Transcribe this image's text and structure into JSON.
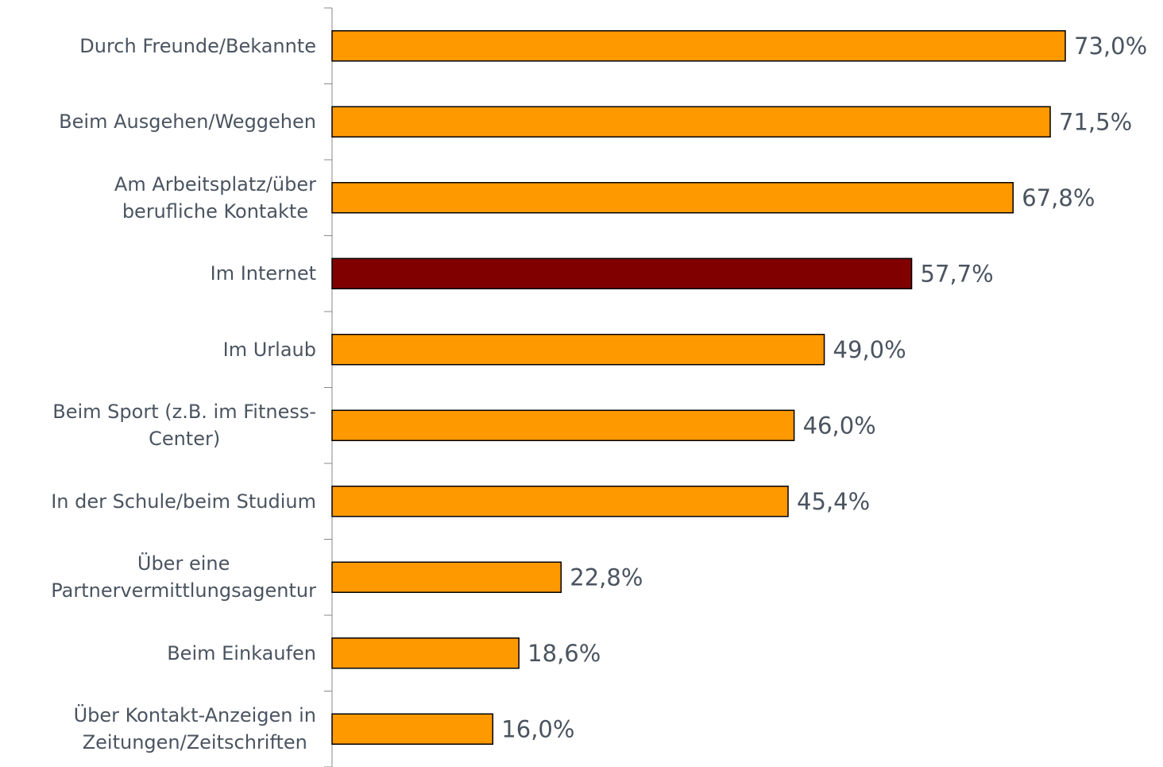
{
  "chart_data": {
    "type": "bar",
    "orientation": "horizontal",
    "categories": [
      "Durch Freunde/Bekannte",
      "Beim Ausgehen/Weggehen",
      "Am Arbeitsplatz/über\nberufliche Kontakte",
      "Im Internet",
      "Im Urlaub",
      "Beim Sport (z.B. im Fitness-\nCenter)",
      "In der Schule/beim Studium",
      "Über eine\nPartnervermittlungsagentur",
      "Beim Einkaufen",
      "Über Kontakt-Anzeigen in\nZeitungen/Zeitschriften"
    ],
    "values": [
      73.0,
      71.5,
      67.8,
      57.7,
      49.0,
      46.0,
      45.4,
      22.8,
      18.6,
      16.0
    ],
    "value_labels": [
      "73,0%",
      "71,5%",
      "67,8%",
      "57,7%",
      "49,0%",
      "46,0%",
      "45,4%",
      "22,8%",
      "18,6%",
      "16,0%"
    ],
    "colors": [
      "#ff9900",
      "#ff9900",
      "#ff9900",
      "#800000",
      "#ff9900",
      "#ff9900",
      "#ff9900",
      "#ff9900",
      "#ff9900",
      "#ff9900"
    ]
  }
}
